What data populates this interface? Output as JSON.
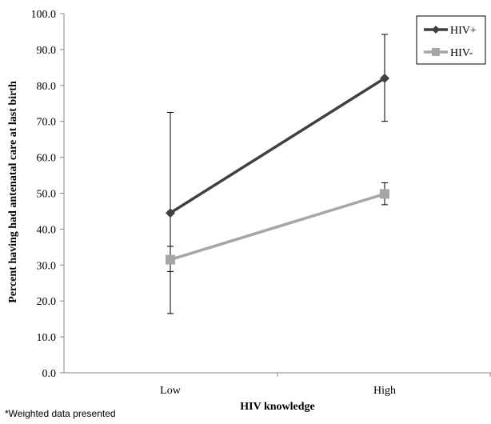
{
  "chart_data": {
    "type": "line",
    "categories": [
      "Low",
      "High"
    ],
    "series": [
      {
        "name": "HIV+",
        "values": [
          44.5,
          82.0
        ],
        "error_low": [
          16.5,
          70.0
        ],
        "error_high": [
          72.5,
          94.2
        ],
        "color": "#404040",
        "marker": "diamond"
      },
      {
        "name": "HIV-",
        "values": [
          31.5,
          49.8
        ],
        "error_low": [
          28.2,
          46.8
        ],
        "error_high": [
          35.2,
          52.9
        ],
        "color": "#a6a6a6",
        "marker": "square"
      }
    ],
    "xlabel": "HIV knowledge",
    "ylabel": "Percent having had antenatal care at last birth",
    "ylim": [
      0,
      100
    ],
    "yticks": [
      "0.0",
      "10.0",
      "20.0",
      "30.0",
      "40.0",
      "50.0",
      "60.0",
      "70.0",
      "80.0",
      "90.0",
      "100.0"
    ],
    "grid": false,
    "legend": "top-right"
  },
  "footnote": "*Weighted data presented"
}
